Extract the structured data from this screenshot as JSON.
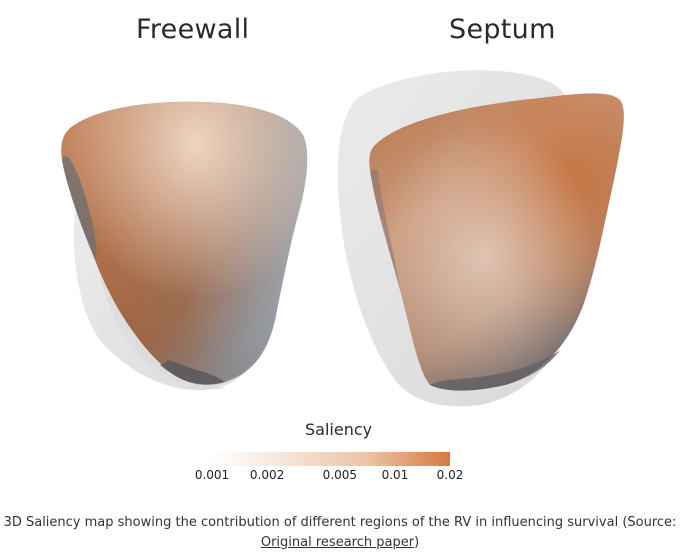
{
  "panels": {
    "left_title": "Freewall",
    "right_title": "Septum"
  },
  "colorbar": {
    "title": "Saliency",
    "ticks": [
      "0.001",
      "0.002",
      "0.005",
      "0.01",
      "0.02"
    ],
    "color_low": "#ffffff",
    "color_high": "#d9783f"
  },
  "caption": {
    "text": "3D Saliency map showing the contribution of different regions of the RV in influencing survival (Source:",
    "link_text": "Original research paper",
    "suffix": ")"
  }
}
